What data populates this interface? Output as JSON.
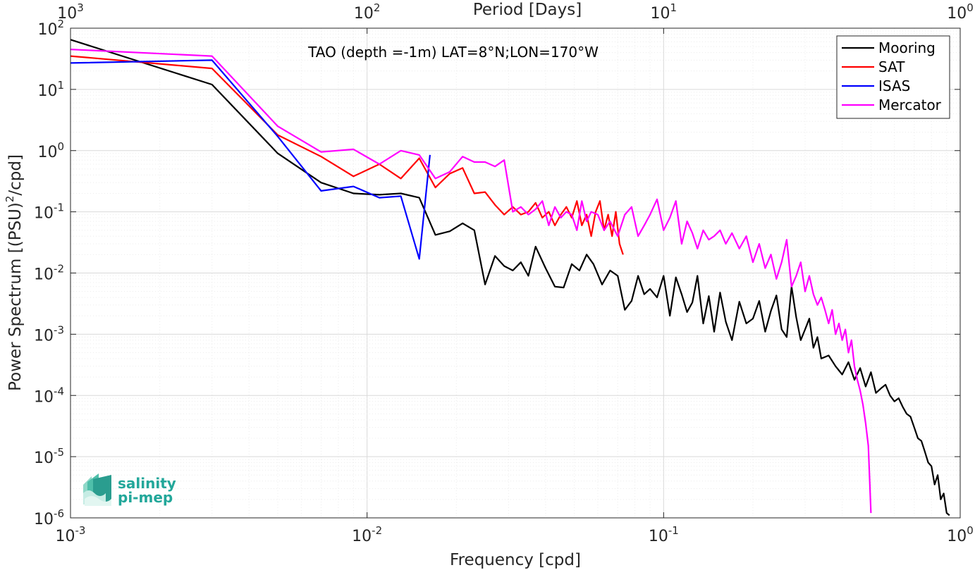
{
  "chart_data": {
    "type": "line",
    "title": "TAO (depth =-1m) LAT=8°N;LON=170°W",
    "xlabel": "Frequency [cpd]",
    "ylabel_main": "Power Spectrum [(PSU)",
    "ylabel_sup": "2",
    "ylabel_tail": "/cpd]",
    "top_axis_label": "Period [Days]",
    "x_scale": "log",
    "y_scale": "log",
    "xlim": [
      0.001,
      1
    ],
    "ylim": [
      1e-06,
      100
    ],
    "grid": true,
    "legend_position": "top-right",
    "x_ticks": [
      {
        "value": 0.001,
        "base": "10",
        "exp": "-3"
      },
      {
        "value": 0.01,
        "base": "10",
        "exp": "-2"
      },
      {
        "value": 0.1,
        "base": "10",
        "exp": "-1"
      },
      {
        "value": 1,
        "base": "10",
        "exp": "0"
      }
    ],
    "y_ticks": [
      {
        "value": 1e-06,
        "base": "10",
        "exp": "-6"
      },
      {
        "value": 1e-05,
        "base": "10",
        "exp": "-5"
      },
      {
        "value": 0.0001,
        "base": "10",
        "exp": "-4"
      },
      {
        "value": 0.001,
        "base": "10",
        "exp": "-3"
      },
      {
        "value": 0.01,
        "base": "10",
        "exp": "-2"
      },
      {
        "value": 0.1,
        "base": "10",
        "exp": "-1"
      },
      {
        "value": 1,
        "base": "10",
        "exp": "0"
      },
      {
        "value": 10,
        "base": "10",
        "exp": "1"
      },
      {
        "value": 100,
        "base": "10",
        "exp": "2"
      }
    ],
    "top_ticks": [
      {
        "freq": 0.001,
        "base": "10",
        "exp": "3"
      },
      {
        "freq": 0.01,
        "base": "10",
        "exp": "2"
      },
      {
        "freq": 0.1,
        "base": "10",
        "exp": "1"
      },
      {
        "freq": 1,
        "base": "10",
        "exp": "0"
      }
    ],
    "series": [
      {
        "name": "Mooring",
        "color": "#000000",
        "x": [
          0.001,
          0.003,
          0.005,
          0.007,
          0.009,
          0.011,
          0.013,
          0.015,
          0.017,
          0.019,
          0.021,
          0.023,
          0.025,
          0.027,
          0.029,
          0.031,
          0.033,
          0.035,
          0.037,
          0.04,
          0.043,
          0.046,
          0.049,
          0.052,
          0.055,
          0.058,
          0.062,
          0.066,
          0.07,
          0.074,
          0.078,
          0.082,
          0.086,
          0.09,
          0.095,
          0.1,
          0.105,
          0.11,
          0.115,
          0.12,
          0.125,
          0.13,
          0.136,
          0.142,
          0.148,
          0.155,
          0.162,
          0.17,
          0.18,
          0.19,
          0.2,
          0.21,
          0.22,
          0.23,
          0.24,
          0.25,
          0.26,
          0.27,
          0.28,
          0.29,
          0.3,
          0.31,
          0.32,
          0.33,
          0.34,
          0.36,
          0.38,
          0.4,
          0.42,
          0.44,
          0.46,
          0.48,
          0.5,
          0.52,
          0.54,
          0.56,
          0.58,
          0.6,
          0.62,
          0.64,
          0.66,
          0.68,
          0.7,
          0.72,
          0.74,
          0.76,
          0.78,
          0.8,
          0.82,
          0.84,
          0.86,
          0.88,
          0.9,
          0.92
        ],
        "y": [
          65,
          12,
          0.9,
          0.3,
          0.2,
          0.19,
          0.2,
          0.17,
          0.042,
          0.048,
          0.065,
          0.05,
          0.0065,
          0.019,
          0.013,
          0.011,
          0.015,
          0.009,
          0.027,
          0.012,
          0.006,
          0.0058,
          0.014,
          0.011,
          0.02,
          0.014,
          0.0065,
          0.011,
          0.009,
          0.0025,
          0.0035,
          0.009,
          0.0045,
          0.0055,
          0.004,
          0.009,
          0.002,
          0.0085,
          0.0045,
          0.0023,
          0.0033,
          0.009,
          0.0015,
          0.0042,
          0.0011,
          0.0048,
          0.0016,
          0.0008,
          0.0034,
          0.0015,
          0.0018,
          0.0035,
          0.0011,
          0.0024,
          0.0043,
          0.0012,
          0.0009,
          0.006,
          0.0019,
          0.0008,
          0.0012,
          0.0018,
          0.0006,
          0.0009,
          0.0004,
          0.00045,
          0.0003,
          0.00022,
          0.00035,
          0.00018,
          0.00028,
          0.00014,
          0.00024,
          0.00011,
          0.00013,
          0.00015,
          0.0001,
          8e-05,
          9e-05,
          6.5e-05,
          5e-05,
          4.5e-05,
          3e-05,
          2e-05,
          1.8e-05,
          1.2e-05,
          8e-06,
          7e-06,
          3.5e-06,
          5e-06,
          2e-06,
          2.5e-06,
          1.2e-06,
          1.1e-06
        ]
      },
      {
        "name": "SAT",
        "color": "#ff0000",
        "x": [
          0.001,
          0.003,
          0.005,
          0.007,
          0.009,
          0.011,
          0.013,
          0.015,
          0.017,
          0.019,
          0.021,
          0.023,
          0.025,
          0.027,
          0.029,
          0.031,
          0.033,
          0.035,
          0.037,
          0.039,
          0.041,
          0.043,
          0.045,
          0.047,
          0.049,
          0.051,
          0.053,
          0.055,
          0.057,
          0.059,
          0.061,
          0.063,
          0.065,
          0.067,
          0.069,
          0.071,
          0.073
        ],
        "y": [
          35,
          22,
          1.8,
          0.8,
          0.38,
          0.6,
          0.35,
          0.75,
          0.25,
          0.42,
          0.52,
          0.2,
          0.21,
          0.13,
          0.09,
          0.12,
          0.09,
          0.1,
          0.14,
          0.08,
          0.1,
          0.06,
          0.09,
          0.12,
          0.08,
          0.15,
          0.06,
          0.09,
          0.04,
          0.1,
          0.15,
          0.05,
          0.09,
          0.04,
          0.1,
          0.03,
          0.02
        ]
      },
      {
        "name": "ISAS",
        "color": "#0000ff",
        "x": [
          0.001,
          0.003,
          0.005,
          0.007,
          0.009,
          0.011,
          0.013,
          0.015,
          0.0163
        ],
        "y": [
          27,
          30,
          1.7,
          0.22,
          0.26,
          0.17,
          0.18,
          0.017,
          0.85
        ]
      },
      {
        "name": "Mercator",
        "color": "#ff00ff",
        "x": [
          0.001,
          0.003,
          0.005,
          0.007,
          0.009,
          0.011,
          0.013,
          0.015,
          0.017,
          0.019,
          0.021,
          0.023,
          0.025,
          0.027,
          0.029,
          0.031,
          0.033,
          0.035,
          0.037,
          0.039,
          0.041,
          0.043,
          0.045,
          0.047,
          0.049,
          0.051,
          0.053,
          0.055,
          0.057,
          0.06,
          0.063,
          0.066,
          0.07,
          0.074,
          0.078,
          0.082,
          0.086,
          0.09,
          0.095,
          0.1,
          0.105,
          0.11,
          0.115,
          0.12,
          0.125,
          0.13,
          0.136,
          0.142,
          0.148,
          0.155,
          0.162,
          0.17,
          0.18,
          0.19,
          0.2,
          0.21,
          0.22,
          0.23,
          0.24,
          0.25,
          0.26,
          0.27,
          0.28,
          0.29,
          0.3,
          0.31,
          0.32,
          0.33,
          0.34,
          0.35,
          0.36,
          0.37,
          0.38,
          0.39,
          0.4,
          0.41,
          0.42,
          0.43,
          0.44,
          0.45,
          0.46,
          0.47,
          0.48,
          0.49,
          0.5
        ],
        "y": [
          45,
          35,
          2.5,
          0.95,
          1.05,
          0.6,
          1.0,
          0.85,
          0.35,
          0.45,
          0.8,
          0.65,
          0.65,
          0.55,
          0.7,
          0.1,
          0.12,
          0.09,
          0.11,
          0.15,
          0.06,
          0.12,
          0.08,
          0.1,
          0.09,
          0.05,
          0.15,
          0.07,
          0.1,
          0.09,
          0.05,
          0.07,
          0.04,
          0.09,
          0.12,
          0.04,
          0.06,
          0.09,
          0.16,
          0.05,
          0.08,
          0.15,
          0.03,
          0.07,
          0.045,
          0.025,
          0.05,
          0.035,
          0.04,
          0.05,
          0.03,
          0.045,
          0.025,
          0.04,
          0.015,
          0.03,
          0.012,
          0.02,
          0.008,
          0.015,
          0.035,
          0.006,
          0.009,
          0.015,
          0.005,
          0.009,
          0.0045,
          0.003,
          0.004,
          0.0025,
          0.0015,
          0.0025,
          0.001,
          0.0015,
          0.0008,
          0.0012,
          0.0005,
          0.0008,
          0.0003,
          0.00018,
          0.00012,
          7e-05,
          3.5e-05,
          1.5e-05,
          1.2e-06
        ]
      }
    ]
  },
  "logo": {
    "line1": "salinity",
    "line2": "pi-mep"
  }
}
